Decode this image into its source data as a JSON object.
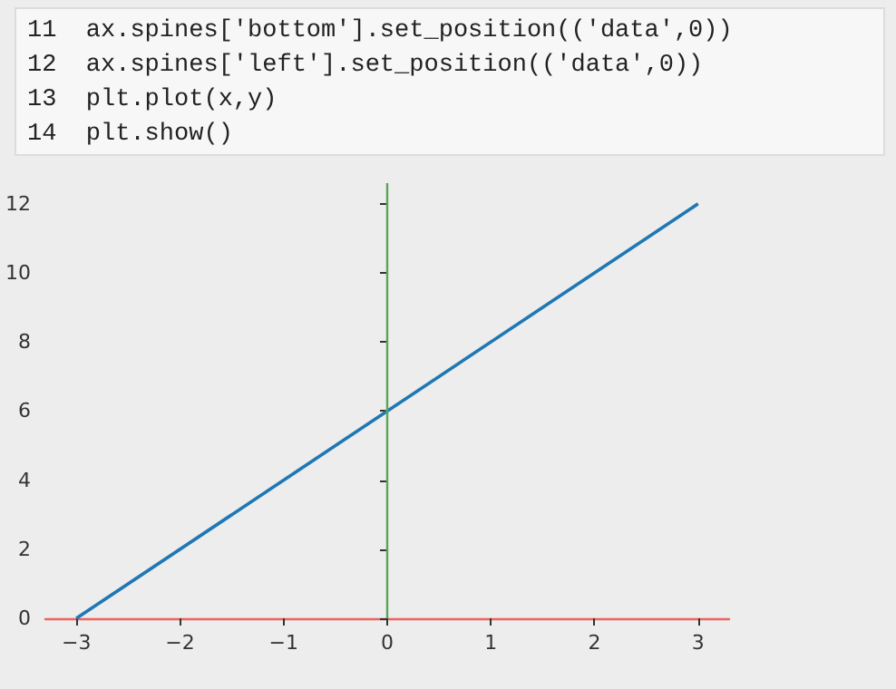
{
  "chart_data": {
    "type": "line",
    "annotations": [
      "11  ax.spines['bottom'].set_position(('data',0))",
      "12  ax.spines['left'].set_position(('data',0))",
      "13  plt.plot(x,y)",
      "14  plt.show()"
    ],
    "x": [
      -3,
      3
    ],
    "series": [
      {
        "color": "#1f77b4",
        "values": [
          0,
          12
        ]
      }
    ],
    "xlim": [
      -3.3,
      3.3
    ],
    "ylim": [
      0,
      12.6
    ],
    "xticks": [
      {
        "value": -3,
        "label": "−3"
      },
      {
        "value": -2,
        "label": "−2"
      },
      {
        "value": -1,
        "label": "−1"
      },
      0,
      1,
      2,
      3
    ],
    "yticks": [
      0,
      2,
      4,
      6,
      8,
      10,
      12
    ],
    "ref_lines": [
      {
        "axis": "x",
        "value": 0,
        "color": "#5aa55a"
      }
    ],
    "grid": false,
    "marker": "none",
    "line_style": "solid"
  }
}
